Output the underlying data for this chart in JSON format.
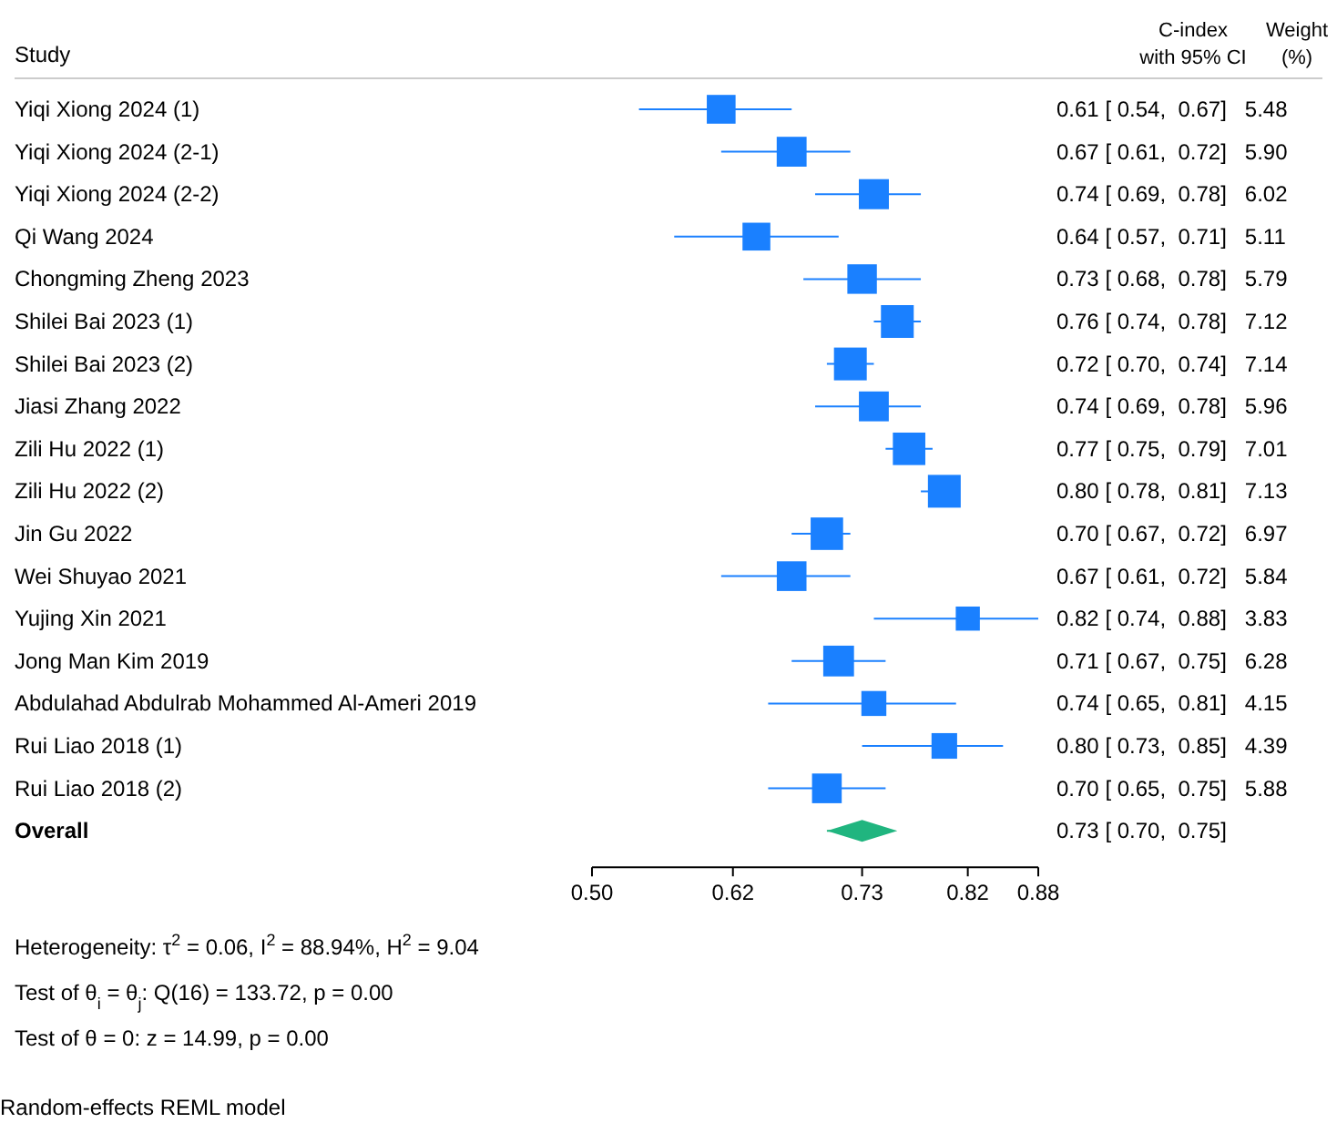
{
  "chart_data": {
    "type": "scatter",
    "ylabel": "Study",
    "categories": [
      "Yiqi Xiong 2024 (1)",
      "Yiqi Xiong 2024 (2-1)",
      "Yiqi Xiong 2024 (2-2)",
      "Qi Wang 2024",
      "Chongming Zheng 2023",
      "Shilei Bai 2023 (1)",
      "Shilei Bai 2023 (2)",
      "Jiasi Zhang 2022",
      "Zili Hu 2022 (1)",
      "Zili Hu 2022 (2)",
      "Jin Gu 2022",
      "Wei Shuyao 2021",
      "Yujing Xin 2021",
      "Jong Man Kim 2019",
      "Abdulahad Abdulrab Mohammed Al-Ameri 2019",
      "Rui Liao 2018 (1)",
      "Rui Liao 2018 (2)",
      "Overall"
    ],
    "series": [
      {
        "marker": "square",
        "color": "#1a80ff",
        "values": [
          0.61,
          0.67,
          0.74,
          0.64,
          0.73,
          0.76,
          0.72,
          0.74,
          0.77,
          0.8,
          0.7,
          0.67,
          0.82,
          0.71,
          0.74,
          0.8,
          0.7,
          null
        ],
        "errors": [
          [
            0.54,
            0.67
          ],
          [
            0.61,
            0.72
          ],
          [
            0.69,
            0.78
          ],
          [
            0.57,
            0.71
          ],
          [
            0.68,
            0.78
          ],
          [
            0.74,
            0.78
          ],
          [
            0.7,
            0.74
          ],
          [
            0.69,
            0.78
          ],
          [
            0.75,
            0.79
          ],
          [
            0.78,
            0.81
          ],
          [
            0.67,
            0.72
          ],
          [
            0.61,
            0.72
          ],
          [
            0.74,
            0.88
          ],
          [
            0.67,
            0.75
          ],
          [
            0.65,
            0.81
          ],
          [
            0.73,
            0.85
          ],
          [
            0.65,
            0.75
          ],
          null
        ],
        "value_labels": [
          "0.61 [ 0.54,  0.67]   5.48",
          "0.67 [ 0.61,  0.72]   5.90",
          "0.74 [ 0.69,  0.78]   6.02",
          "0.64 [ 0.57,  0.71]   5.11",
          "0.73 [ 0.68,  0.78]   5.79",
          "0.76 [ 0.74,  0.78]   7.12",
          "0.72 [ 0.70,  0.74]   7.14",
          "0.74 [ 0.69,  0.78]   5.96",
          "0.77 [ 0.75,  0.79]   7.01",
          "0.80 [ 0.78,  0.81]   7.13",
          "0.70 [ 0.67,  0.72]   6.97",
          "0.67 [ 0.61,  0.72]   5.84",
          "0.82 [ 0.74,  0.88]   3.83",
          "0.71 [ 0.67,  0.75]   6.28",
          "0.74 [ 0.65,  0.81]   4.15",
          "0.80 [ 0.73,  0.85]   4.39",
          "0.70 [ 0.65,  0.75]   5.88",
          null
        ],
        "sizes": [
          0.77,
          0.83,
          0.84,
          0.72,
          0.81,
          1.0,
          1.0,
          0.83,
          0.98,
          1.0,
          0.98,
          0.82,
          0.54,
          0.88,
          0.58,
          0.61,
          0.82,
          null
        ]
      },
      {
        "marker": "diamond",
        "color": "#20b57f",
        "values": [
          null,
          null,
          null,
          null,
          null,
          null,
          null,
          null,
          null,
          null,
          null,
          null,
          null,
          null,
          null,
          null,
          null,
          0.73
        ],
        "errors": [
          null,
          null,
          null,
          null,
          null,
          null,
          null,
          null,
          null,
          null,
          null,
          null,
          null,
          null,
          null,
          null,
          null,
          [
            0.7,
            0.75
          ]
        ]
      }
    ],
    "orientation": "horizontal",
    "xlim": [
      0.5,
      0.88
    ],
    "xticks": [
      {
        "value": 0.5,
        "label": "0.50"
      },
      {
        "value": 0.62,
        "label": "0.62"
      },
      {
        "value": 0.73,
        "label": "0.73"
      },
      {
        "value": 0.82,
        "label": "0.82"
      },
      {
        "value": 0.88,
        "label": "0.88"
      }
    ],
    "annotations": [
      "C-index\nwith 95% CI",
      "Weight\n(%)",
      "Heterogeneity: τ$^{2}$ = 0.06, I$^{2}$ = 88.94%, H$^{2}$ = 9.04",
      "Test of θ$_{i}$ = θ$_{j}$: Q(16) = 133.72, p = 0.00",
      "Test of θ = 0: z = 14.99, p = 0.00",
      "Random-effects REML model",
      "0.73 [ 0.70,  0.75]"
    ]
  }
}
